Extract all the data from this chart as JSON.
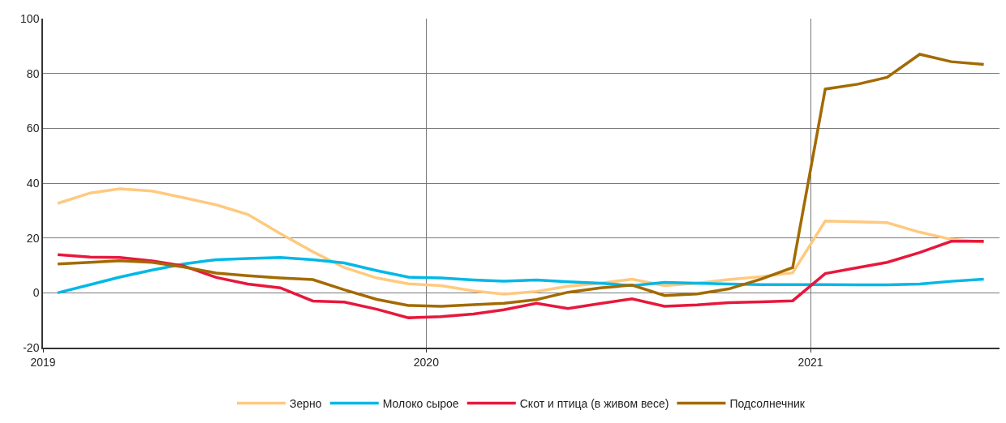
{
  "chart_data": {
    "type": "line",
    "x": [
      "2019-01-15",
      "2019-02-15",
      "2019-03-15",
      "2019-04-15",
      "2019-05-15",
      "2019-06-15",
      "2019-07-15",
      "2019-08-15",
      "2019-09-15",
      "2019-10-15",
      "2019-11-15",
      "2019-12-15",
      "2020-01-15",
      "2020-02-15",
      "2020-03-15",
      "2020-04-15",
      "2020-05-15",
      "2020-06-15",
      "2020-07-15",
      "2020-08-15",
      "2020-09-15",
      "2020-10-15",
      "2020-11-15",
      "2020-12-15",
      "2021-01-15",
      "2021-02-15",
      "2021-03-15",
      "2021-04-15",
      "2021-05-15",
      "2021-06-15"
    ],
    "series": [
      {
        "name": "Зерно",
        "color": "#ffc97f",
        "values": [
          32.6,
          36.4,
          37.9,
          37.1,
          34.7,
          32.1,
          28.6,
          21.6,
          15,
          9.2,
          5.4,
          3.3,
          2.6,
          0.7,
          -0.5,
          0.5,
          2.4,
          3.5,
          5,
          2.6,
          3.5,
          4.8,
          5.9,
          7.3,
          26.2,
          25.9,
          25.6,
          22.1,
          19.5,
          18.5
        ]
      },
      {
        "name": "Молоко сырое",
        "color": "#00b8e6",
        "values": [
          0,
          3,
          5.7,
          8.3,
          10.5,
          12.1,
          12.5,
          12.9,
          12.1,
          10.9,
          8.1,
          5.7,
          5.4,
          4.7,
          4.2,
          4.7,
          4,
          3.5,
          2.6,
          3.8,
          3.5,
          3.2,
          3,
          3,
          3,
          2.9,
          2.9,
          3.2,
          4.2,
          5
        ]
      },
      {
        "name": "Скот и птица (в живом весе)",
        "color": "#e8173c",
        "values": [
          13.9,
          13,
          12.9,
          11.6,
          9.8,
          5.6,
          3.2,
          1.8,
          -3,
          -3.4,
          -6,
          -9.1,
          -8.7,
          -7.7,
          -6.2,
          -3.8,
          -5.7,
          -3.9,
          -2.2,
          -4.9,
          -4.4,
          -3.6,
          -3.3,
          -2.9,
          7,
          9.2,
          11.1,
          14.7,
          18.8,
          18.8
        ]
      },
      {
        "name": "Подсолнечник",
        "color": "#a36a00",
        "values": [
          10.5,
          11.1,
          11.7,
          11.1,
          9.4,
          7.2,
          6.2,
          5.4,
          4.8,
          1.1,
          -2.4,
          -4.6,
          -4.9,
          -4.3,
          -3.8,
          -2.5,
          0.2,
          1.8,
          2.8,
          -1,
          -0.4,
          1.4,
          5,
          9.2,
          74.3,
          76.1,
          78.6,
          87,
          84.3,
          83.3
        ]
      }
    ],
    "xlim": [
      "2019-01-01",
      "2021-06-30"
    ],
    "xticks": [
      {
        "value": "2019-01-01",
        "label": "2019"
      },
      {
        "value": "2020-01-01",
        "label": "2020"
      },
      {
        "value": "2021-01-01",
        "label": "2021"
      }
    ],
    "ylim": [
      -20,
      100
    ],
    "yticks": [
      -20,
      0,
      20,
      40,
      60,
      80,
      100
    ],
    "grid": true,
    "legend": "bottom",
    "marker": "none",
    "line_style": "solid"
  }
}
